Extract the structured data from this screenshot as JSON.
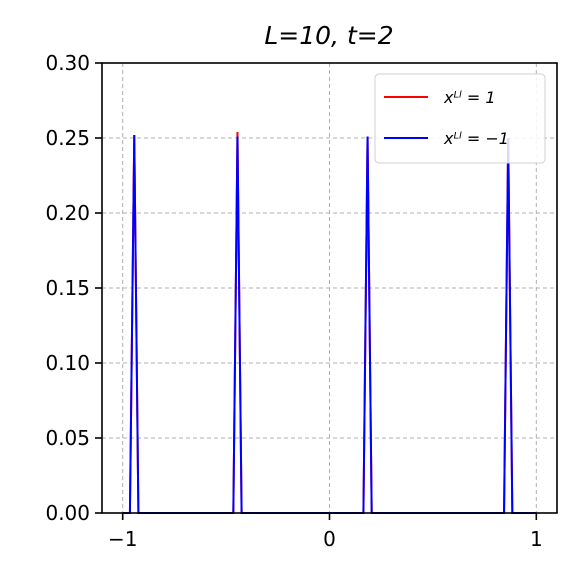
{
  "chart_data": {
    "type": "line",
    "title": "L=10, t=2",
    "xlabel": "",
    "ylabel": "",
    "xlim": [
      -1.1,
      1.1
    ],
    "ylim": [
      0,
      0.3
    ],
    "x_ticks": [
      -1,
      0,
      1
    ],
    "x_tick_labels": [
      "−1",
      "0",
      "1"
    ],
    "y_ticks": [
      0,
      0.05,
      0.1,
      0.15,
      0.2,
      0.25,
      0.3
    ],
    "y_tick_labels": [
      "0.00",
      "0.05",
      "0.10",
      "0.15",
      "0.20",
      "0.25",
      "0.30"
    ],
    "grid": true,
    "legend_position": "top-right",
    "series": [
      {
        "name": "x_L^l = 1",
        "legend_label": "xᴸˡ = 1",
        "color": "#ff0000",
        "x": [
          -1.0,
          -0.965,
          -0.944,
          -0.924,
          -0.465,
          -0.445,
          -0.425,
          0.164,
          0.184,
          0.204,
          0.844,
          0.864,
          0.884,
          1.0
        ],
        "y": [
          0,
          0,
          0.252,
          0,
          0,
          0.254,
          0,
          0,
          0.251,
          0,
          0,
          0.25,
          0,
          0
        ]
      },
      {
        "name": "x_L^l = −1",
        "legend_label": "xᴸˡ = −1",
        "color": "#0000ff",
        "x": [
          -1.0,
          -0.965,
          -0.944,
          -0.924,
          -0.465,
          -0.445,
          -0.425,
          0.164,
          0.184,
          0.204,
          0.844,
          0.864,
          0.884,
          1.0
        ],
        "y": [
          0,
          0,
          0.252,
          0,
          0,
          0.251,
          0,
          0,
          0.251,
          0,
          0,
          0.25,
          0,
          0
        ]
      }
    ]
  }
}
